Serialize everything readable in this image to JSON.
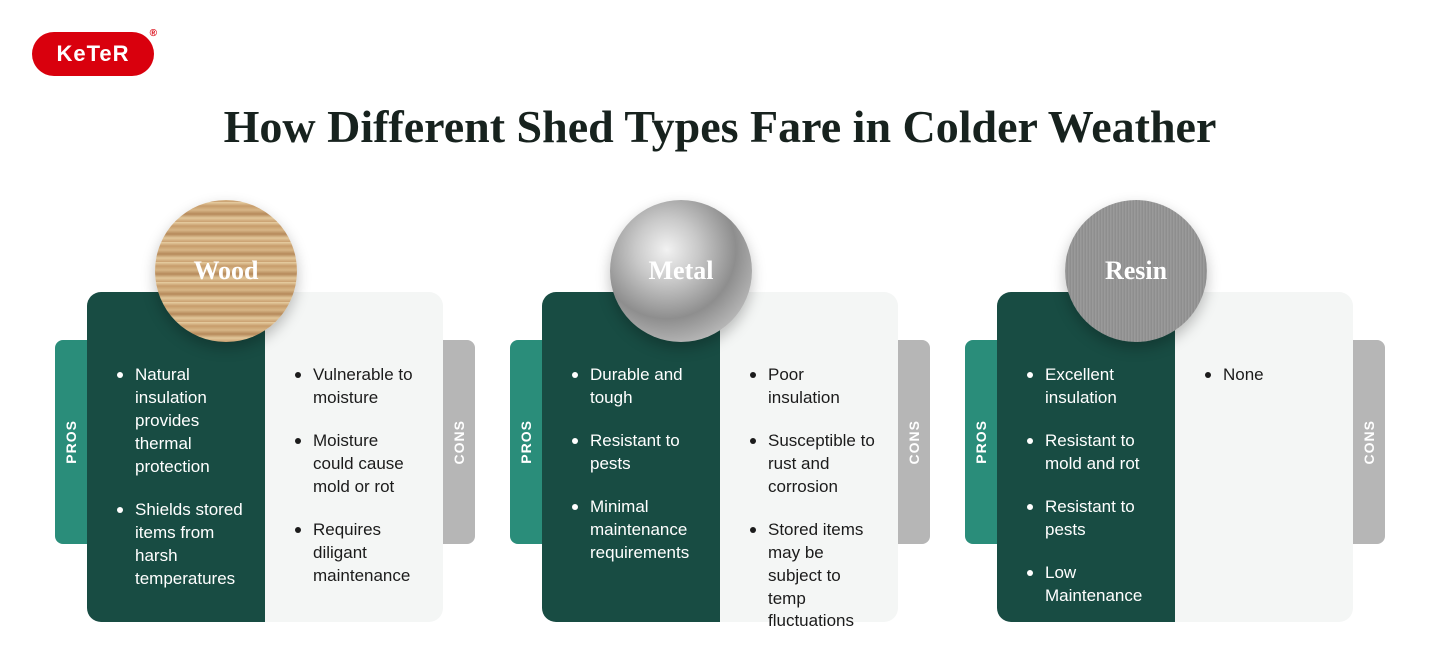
{
  "logo_text": "KeTeR",
  "title": "How Different Shed Types Fare in Colder Weather",
  "labels": {
    "pros": "PROS",
    "cons": "CONS"
  },
  "colors": {
    "brand_red": "#d9000d",
    "panel_green": "#184c43",
    "tab_teal": "#2a8d7a",
    "tab_gray": "#b6b6b6",
    "panel_light": "#f4f6f5",
    "title_color": "#17221e"
  },
  "cards": [
    {
      "name": "Wood",
      "badge_class": "badge-wood",
      "pros": [
        "Natural insulation provides thermal protection",
        "Shields stored items from harsh temperatures"
      ],
      "cons": [
        "Vulnerable to moisture",
        "Moisture could cause mold or rot",
        "Requires diligant maintenance"
      ]
    },
    {
      "name": "Metal",
      "badge_class": "badge-metal",
      "pros": [
        "Durable and tough",
        "Resistant to pests",
        "Minimal maintenance requirements"
      ],
      "cons": [
        "Poor insulation",
        "Susceptible to rust and corrosion",
        "Stored items may be subject to temp fluctuations"
      ]
    },
    {
      "name": "Resin",
      "badge_class": "badge-resin",
      "pros": [
        "Excellent insulation",
        "Resistant to mold and rot",
        "Resistant to pests",
        "Low Maintenance"
      ],
      "cons": [
        "None"
      ]
    }
  ]
}
